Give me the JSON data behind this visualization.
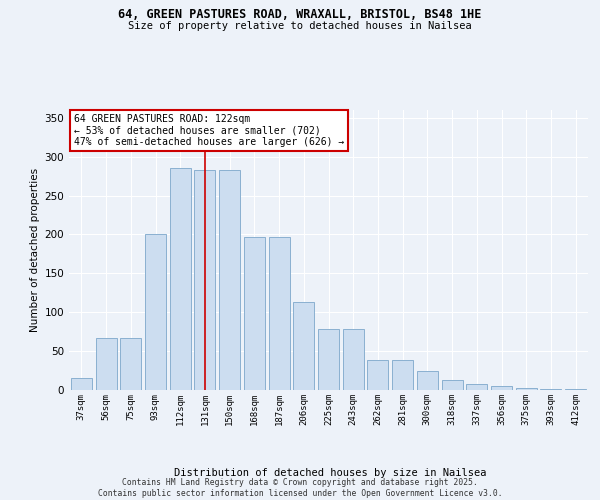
{
  "title_line1": "64, GREEN PASTURES ROAD, WRAXALL, BRISTOL, BS48 1HE",
  "title_line2": "Size of property relative to detached houses in Nailsea",
  "xlabel": "Distribution of detached houses by size in Nailsea",
  "ylabel": "Number of detached properties",
  "categories": [
    "37sqm",
    "56sqm",
    "75sqm",
    "93sqm",
    "112sqm",
    "131sqm",
    "150sqm",
    "168sqm",
    "187sqm",
    "206sqm",
    "225sqm",
    "243sqm",
    "262sqm",
    "281sqm",
    "300sqm",
    "318sqm",
    "337sqm",
    "356sqm",
    "375sqm",
    "393sqm",
    "412sqm"
  ],
  "values": [
    15,
    67,
    67,
    200,
    285,
    283,
    283,
    197,
    197,
    113,
    78,
    78,
    39,
    39,
    25,
    13,
    8,
    5,
    3,
    1,
    1
  ],
  "bar_color": "#ccddf0",
  "bar_edge_color": "#8ab0d0",
  "vline_x": 5.0,
  "annotation_text": "64 GREEN PASTURES ROAD: 122sqm\n← 53% of detached houses are smaller (702)\n47% of semi-detached houses are larger (626) →",
  "annotation_box_facecolor": "#ffffff",
  "annotation_box_edgecolor": "#cc0000",
  "vline_color": "#cc0000",
  "background_color": "#edf2f9",
  "grid_color": "#ffffff",
  "footer_text": "Contains HM Land Registry data © Crown copyright and database right 2025.\nContains public sector information licensed under the Open Government Licence v3.0.",
  "ylim": [
    0,
    360
  ],
  "yticks": [
    0,
    50,
    100,
    150,
    200,
    250,
    300,
    350
  ],
  "fig_width": 6.0,
  "fig_height": 5.0,
  "dpi": 100
}
